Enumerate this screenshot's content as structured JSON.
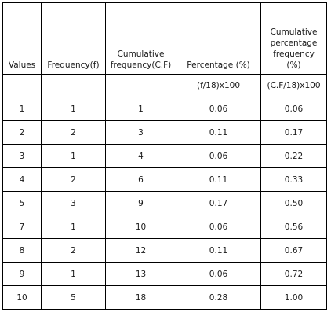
{
  "table": {
    "headers": [
      "Values",
      "Frequency(f)",
      [
        "Cumulative",
        "frequency(C.F)"
      ],
      "Percentage (%)",
      [
        "Cumulative",
        "percentage",
        "frequency",
        "(%)"
      ]
    ],
    "subheaders": [
      "",
      "",
      "",
      "(f/18)x100",
      "(C.F/18)x100"
    ],
    "rows": [
      [
        "1",
        "1",
        "1",
        "0.06",
        "0.06"
      ],
      [
        "2",
        "2",
        "3",
        "0.11",
        "0.17"
      ],
      [
        "3",
        "1",
        "4",
        "0.06",
        "0.22"
      ],
      [
        "4",
        "2",
        "6",
        "0.11",
        "0.33"
      ],
      [
        "5",
        "3",
        "9",
        "0.17",
        "0.50"
      ],
      [
        "7",
        "1",
        "10",
        "0.06",
        "0.56"
      ],
      [
        "8",
        "2",
        "12",
        "0.11",
        "0.67"
      ],
      [
        "9",
        "1",
        "13",
        "0.06",
        "0.72"
      ],
      [
        "10",
        "5",
        "18",
        "0.28",
        "1.00"
      ]
    ]
  }
}
